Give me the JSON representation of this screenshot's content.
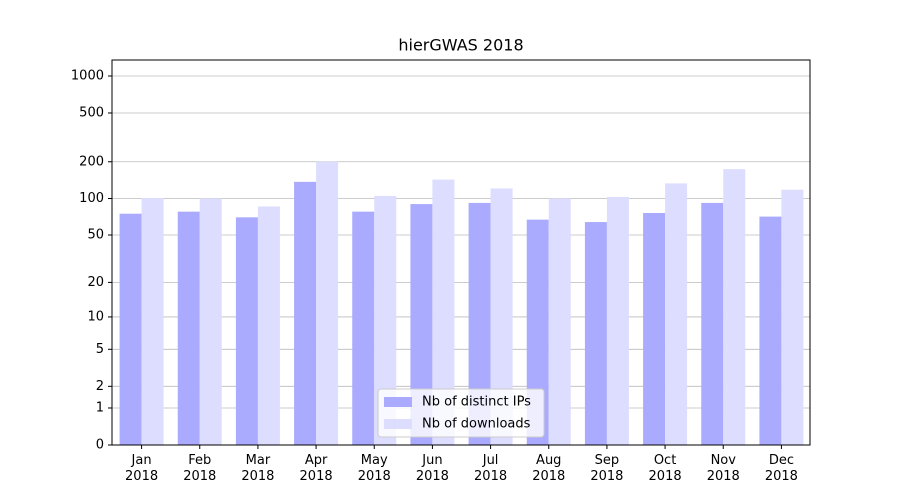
{
  "chart_data": {
    "type": "bar",
    "title": "hierGWAS 2018",
    "categories": [
      "Jan\n2018",
      "Feb\n2018",
      "Mar\n2018",
      "Apr\n2018",
      "May\n2018",
      "Jun\n2018",
      "Jul\n2018",
      "Aug\n2018",
      "Sep\n2018",
      "Oct\n2018",
      "Nov\n2018",
      "Dec\n2018"
    ],
    "series": [
      {
        "name": "Nb of distinct IPs",
        "color": "#aaaaff",
        "values": [
          75,
          78,
          70,
          137,
          78,
          90,
          92,
          67,
          64,
          76,
          92,
          71
        ]
      },
      {
        "name": "Nb of downloads",
        "color": "#ddddff",
        "values": [
          101,
          100,
          86,
          200,
          105,
          143,
          121,
          100,
          103,
          133,
          174,
          118
        ]
      }
    ],
    "yscale": "log1p",
    "ylim": [
      0,
      1350
    ],
    "yticks": [
      0,
      1,
      2,
      5,
      10,
      20,
      50,
      100,
      200,
      500,
      1000
    ],
    "grid": true,
    "legend": "lower center"
  }
}
